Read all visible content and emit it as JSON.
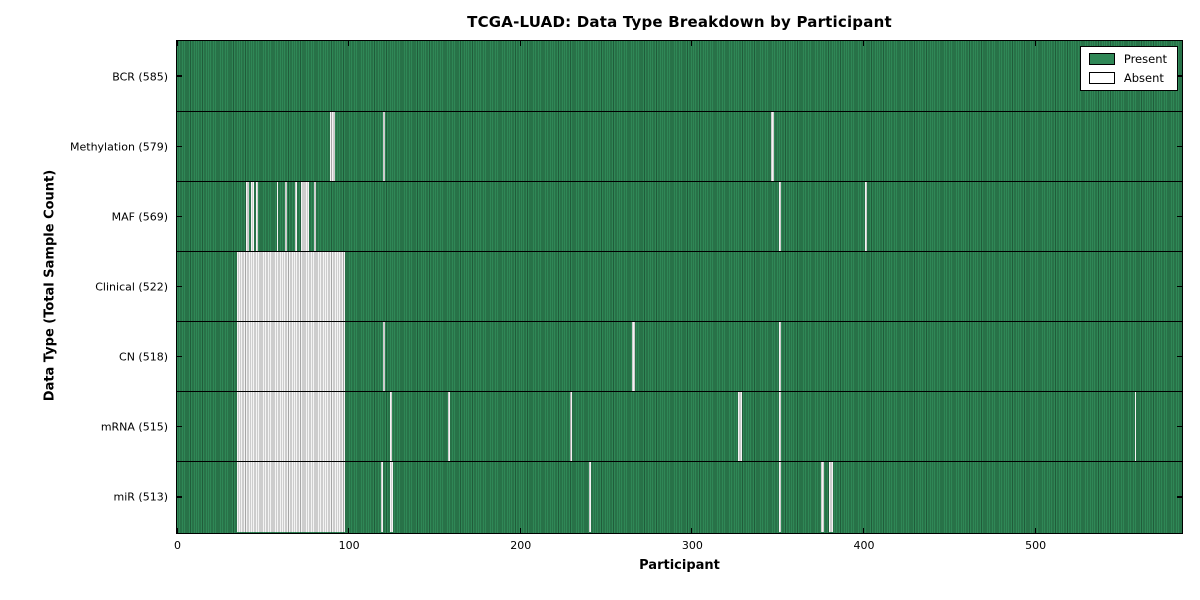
{
  "title": "TCGA-LUAD: Data Type Breakdown by Participant",
  "x_axis_label": "Participant",
  "y_axis_label": "Data Type (Total Sample Count)",
  "legend": {
    "present_label": "Present",
    "absent_label": "Absent"
  },
  "colors": {
    "present_green": "#2f8756",
    "absent_white": "#f4f4f4",
    "cell_border": "rgba(0,0,0,0.32)",
    "axis_black": "#000000"
  },
  "chart_data": {
    "type": "heatmap",
    "title": "TCGA-LUAD: Data Type Breakdown by Participant",
    "xlabel": "Participant",
    "ylabel": "Data Type (Total Sample Count)",
    "legend_entries": [
      "Present",
      "Absent"
    ],
    "legend_position": "upper right",
    "total_participants": 585,
    "x_range": [
      0,
      585
    ],
    "x_tick_values": [
      0,
      100,
      200,
      300,
      400,
      500
    ],
    "x_tick_labels": [
      "0",
      "100",
      "200",
      "300",
      "400",
      "500"
    ],
    "cell_states": [
      "present",
      "absent"
    ],
    "rows": [
      {
        "data_type": "BCR",
        "label": "BCR (585)",
        "present_count": 585,
        "absent_count": 0,
        "absent_ranges": []
      },
      {
        "data_type": "Methylation",
        "label": "Methylation (579)",
        "present_count": 579,
        "absent_count": 6,
        "absent_ranges": [
          [
            89,
            91
          ],
          [
            120,
            120
          ],
          [
            346,
            347
          ]
        ]
      },
      {
        "data_type": "MAF",
        "label": "MAF (569)",
        "present_count": 569,
        "absent_count": 16,
        "absent_ranges": [
          [
            40,
            41
          ],
          [
            43,
            44
          ],
          [
            46,
            46
          ],
          [
            58,
            58
          ],
          [
            63,
            63
          ],
          [
            69,
            69
          ],
          [
            72,
            76
          ],
          [
            80,
            80
          ],
          [
            351,
            351
          ],
          [
            401,
            401
          ]
        ]
      },
      {
        "data_type": "Clinical",
        "label": "Clinical (522)",
        "present_count": 522,
        "absent_count": 63,
        "absent_ranges": [
          [
            35,
            97
          ]
        ]
      },
      {
        "data_type": "CN",
        "label": "CN (518)",
        "present_count": 518,
        "absent_count": 67,
        "absent_ranges": [
          [
            35,
            97
          ],
          [
            120,
            120
          ],
          [
            265,
            266
          ],
          [
            351,
            351
          ]
        ]
      },
      {
        "data_type": "mRNA",
        "label": "mRNA (515)",
        "present_count": 515,
        "absent_count": 70,
        "absent_ranges": [
          [
            35,
            97
          ],
          [
            124,
            124
          ],
          [
            158,
            158
          ],
          [
            229,
            229
          ],
          [
            327,
            328
          ],
          [
            351,
            351
          ],
          [
            558,
            558
          ]
        ]
      },
      {
        "data_type": "miR",
        "label": "miR (513)",
        "present_count": 513,
        "absent_count": 72,
        "absent_ranges": [
          [
            35,
            97
          ],
          [
            119,
            119
          ],
          [
            124,
            125
          ],
          [
            240,
            240
          ],
          [
            351,
            351
          ],
          [
            375,
            376
          ],
          [
            380,
            381
          ]
        ]
      }
    ]
  }
}
